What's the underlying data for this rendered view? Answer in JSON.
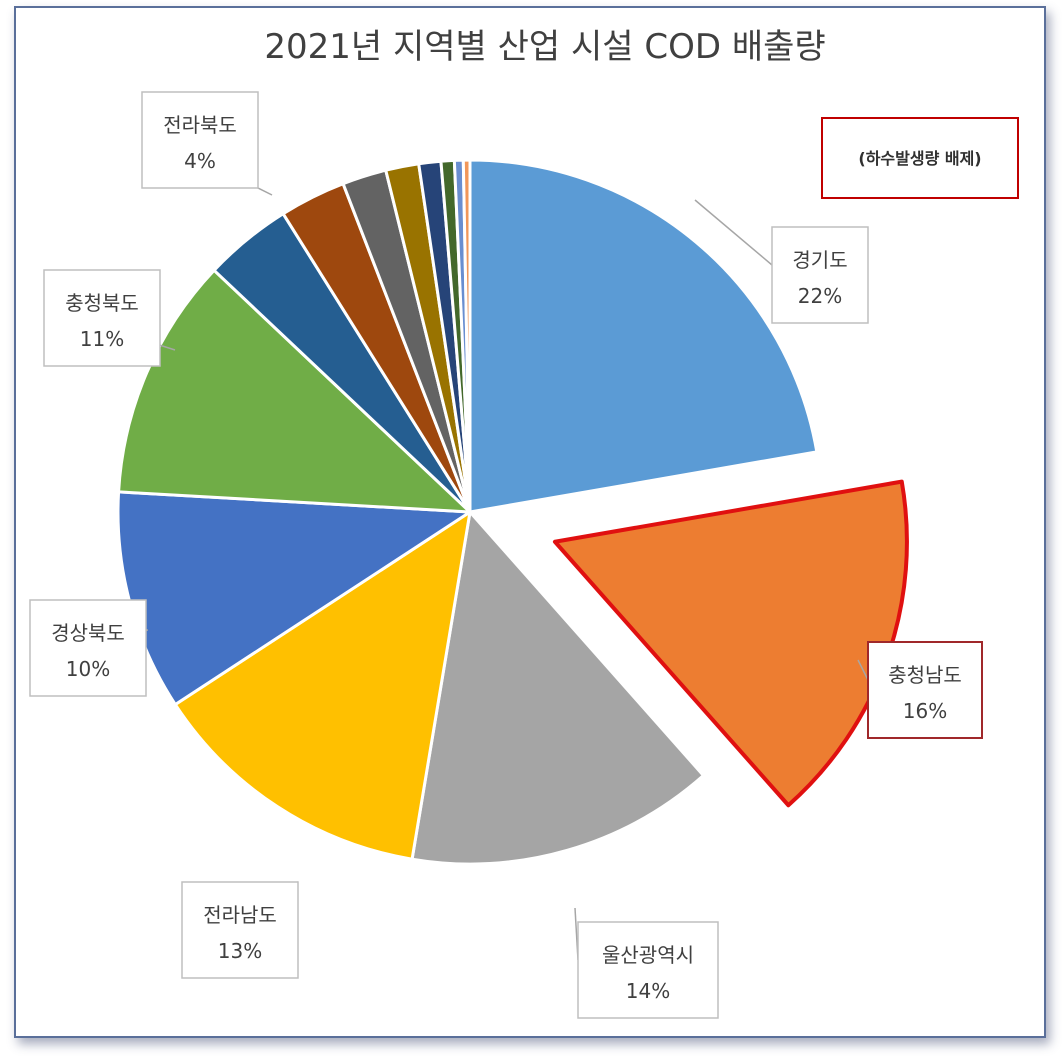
{
  "chart_data": {
    "type": "pie",
    "title": "2021년 지역별 산업 시설 COD 배출량",
    "annotation": "(하수발생량 배제)",
    "slices": [
      {
        "label": "경기도",
        "value": 22,
        "value_label": "22%",
        "color": "#5b9bd5",
        "labeled": true
      },
      {
        "label": "충청남도",
        "value": 16,
        "value_label": "16%",
        "color": "#ed7d31",
        "labeled": true,
        "exploded": true,
        "highlight": "#e01010"
      },
      {
        "label": "울산광역시",
        "value": 14,
        "value_label": "14%",
        "color": "#a5a5a5",
        "labeled": true
      },
      {
        "label": "전라남도",
        "value": 13,
        "value_label": "13%",
        "color": "#ffc000",
        "labeled": true
      },
      {
        "label": "경상북도",
        "value": 10,
        "value_label": "10%",
        "color": "#4472c4",
        "labeled": true
      },
      {
        "label": "충청북도",
        "value": 11,
        "value_label": "11%",
        "color": "#70ad47",
        "labeled": true
      },
      {
        "label": "전라북도",
        "value": 4,
        "value_label": "4%",
        "color": "#255e91",
        "labeled": true
      },
      {
        "label": "",
        "value": 3,
        "value_label": "",
        "color": "#9e480e",
        "labeled": false
      },
      {
        "label": "",
        "value": 2,
        "value_label": "",
        "color": "#636363",
        "labeled": false
      },
      {
        "label": "",
        "value": 1.5,
        "value_label": "",
        "color": "#997300",
        "labeled": false
      },
      {
        "label": "",
        "value": 1,
        "value_label": "",
        "color": "#264478",
        "labeled": false
      },
      {
        "label": "",
        "value": 0.6,
        "value_label": "",
        "color": "#43682b",
        "labeled": false
      },
      {
        "label": "",
        "value": 0.4,
        "value_label": "",
        "color": "#698ed0",
        "labeled": false
      },
      {
        "label": "",
        "value": 0.3,
        "value_label": "",
        "color": "#f1975a",
        "labeled": false
      }
    ],
    "legend": "none"
  }
}
